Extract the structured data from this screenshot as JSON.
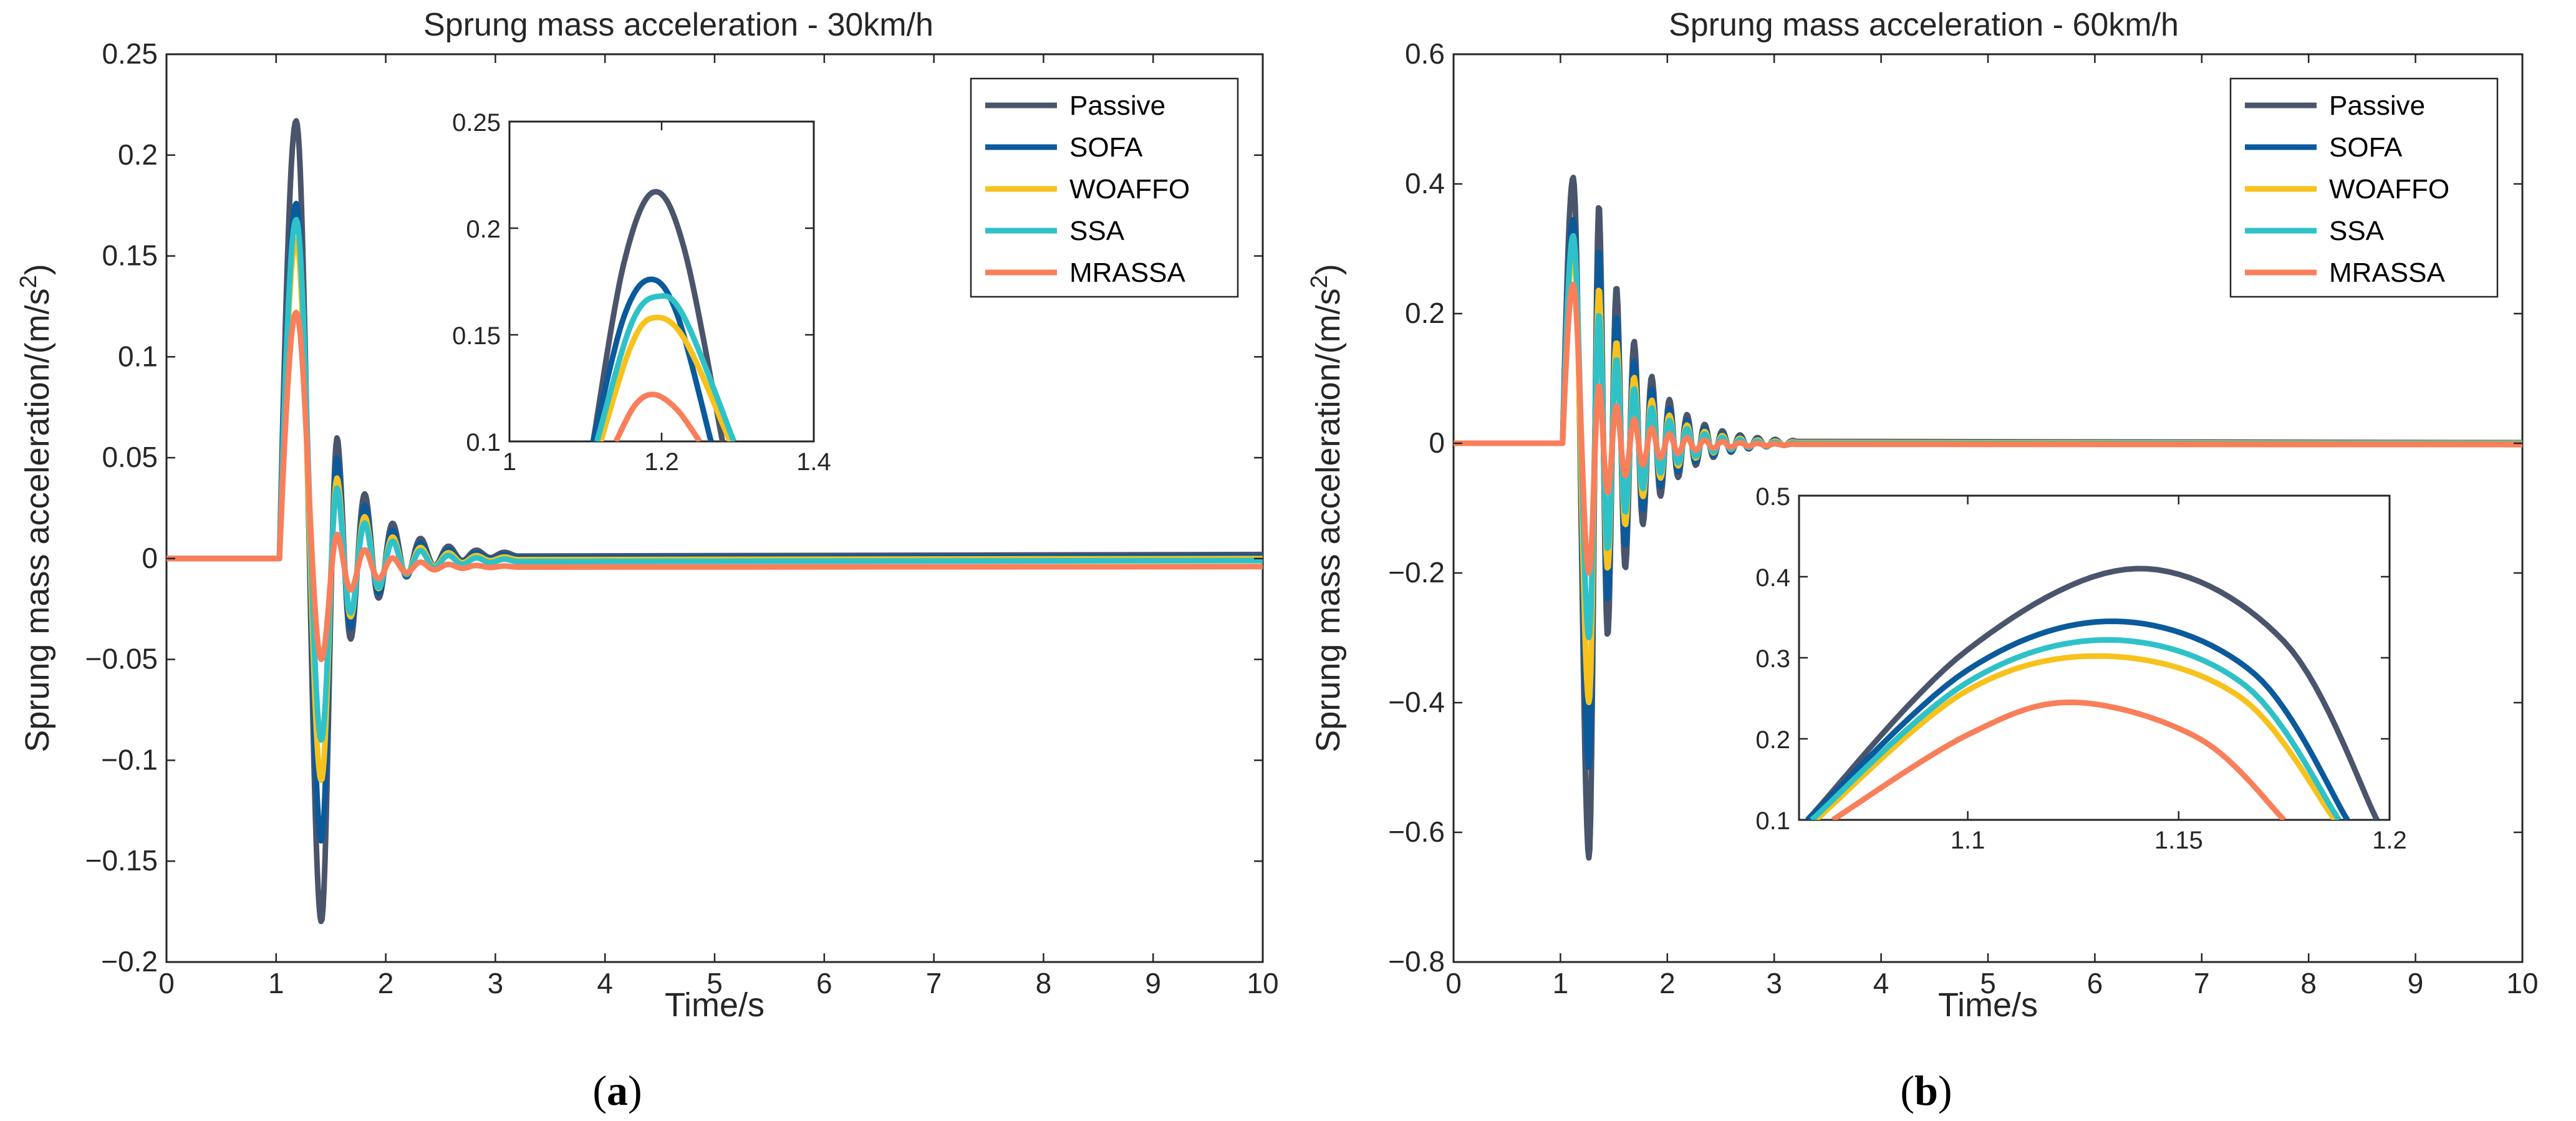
{
  "colors": {
    "Passive": "#4a556c",
    "SOFA": "#0a5a9c",
    "WOAFFO": "#f7c21c",
    "SSA": "#2ec2c8",
    "MRASSA": "#f97f5b"
  },
  "captions": {
    "a_open": "(",
    "a_letter": "a",
    "a_close": ")",
    "b_open": "(",
    "b_letter": "b",
    "b_close": ")"
  },
  "chart_data": [
    {
      "id": "a",
      "type": "line",
      "title": "Sprung mass acceleration - 30km/h",
      "xlabel": "Time/s",
      "ylabel": "Sprung mass acceleration/(m/s",
      "ylabel_sup": "2",
      "ylabel_close": ")",
      "xlim": [
        0,
        10
      ],
      "ylim": [
        -0.2,
        0.25
      ],
      "xticks": [
        0,
        1,
        2,
        3,
        4,
        5,
        6,
        7,
        8,
        9,
        10
      ],
      "xtick_labels": [
        "0",
        "1",
        "2",
        "3",
        "4",
        "5",
        "6",
        "7",
        "8",
        "9",
        "10"
      ],
      "yticks": [
        -0.2,
        -0.15,
        -0.1,
        -0.05,
        0,
        0.05,
        0.1,
        0.15,
        0.2,
        0.25
      ],
      "ytick_labels": [
        "−0.2",
        "−0.15",
        "−0.1",
        "−0.05",
        "0",
        "0.05",
        "0.1",
        "0.15",
        "0.2",
        "0.25"
      ],
      "legend": [
        "Passive",
        "SOFA",
        "WOAFFO",
        "SSA",
        "MRASSA"
      ],
      "legend_position": "top-right",
      "series": [
        {
          "name": "Passive",
          "peak": 0.217,
          "trough": -0.18,
          "peak2": 0.06,
          "trough2": -0.035,
          "tail": 0.002
        },
        {
          "name": "SOFA",
          "peak": 0.176,
          "trough": -0.14,
          "peak2": 0.05,
          "trough2": -0.03,
          "tail": 0.001
        },
        {
          "name": "WOAFFO",
          "peak": 0.158,
          "trough": -0.11,
          "peak2": 0.04,
          "trough2": -0.025,
          "tail": 0
        },
        {
          "name": "SSA",
          "peak": 0.168,
          "trough": -0.09,
          "peak2": 0.035,
          "trough2": -0.02,
          "tail": -0.001
        },
        {
          "name": "MRASSA",
          "peak": 0.122,
          "trough": -0.05,
          "peak2": 0.012,
          "trough2": -0.01,
          "tail": -0.004
        }
      ],
      "inset": {
        "xlim": [
          1,
          1.4
        ],
        "ylim": [
          0.1,
          0.25
        ],
        "xticks": [
          1,
          1.2,
          1.4
        ],
        "xtick_labels": [
          "1",
          "1.2",
          "1.4"
        ],
        "yticks": [
          0.1,
          0.15,
          0.2,
          0.25
        ],
        "ytick_labels": [
          "0.1",
          "0.15",
          "0.2",
          "0.25"
        ],
        "series": [
          {
            "name": "Passive",
            "x": [
              1.11,
              1.15,
              1.19,
              1.23,
              1.28
            ],
            "y": [
              0.1,
              0.183,
              0.217,
              0.19,
              0.1
            ]
          },
          {
            "name": "SOFA",
            "x": [
              1.11,
              1.15,
              1.185,
              1.22,
              1.265
            ],
            "y": [
              0.1,
              0.158,
              0.176,
              0.16,
              0.1
            ]
          },
          {
            "name": "WOAFFO",
            "x": [
              1.12,
              1.16,
              1.19,
              1.23,
              1.29
            ],
            "y": [
              0.1,
              0.145,
              0.158,
              0.148,
              0.1
            ]
          },
          {
            "name": "SSA",
            "x": [
              1.115,
              1.16,
              1.195,
              1.23,
              1.295
            ],
            "y": [
              0.1,
              0.155,
              0.168,
              0.158,
              0.1
            ]
          },
          {
            "name": "MRASSA",
            "x": [
              1.14,
              1.165,
              1.19,
              1.22,
              1.25
            ],
            "y": [
              0.1,
              0.117,
              0.122,
              0.115,
              0.1
            ]
          }
        ]
      }
    },
    {
      "id": "b",
      "type": "line",
      "title": "Sprung mass acceleration - 60km/h",
      "xlabel": "Time/s",
      "ylabel": "Sprung mass acceleration/(m/s",
      "ylabel_sup": "2",
      "ylabel_close": ")",
      "xlim": [
        0,
        10
      ],
      "ylim": [
        -0.8,
        0.6
      ],
      "xticks": [
        0,
        1,
        2,
        3,
        4,
        5,
        6,
        7,
        8,
        9,
        10
      ],
      "xtick_labels": [
        "0",
        "1",
        "2",
        "3",
        "4",
        "5",
        "6",
        "7",
        "8",
        "9",
        "10"
      ],
      "yticks": [
        -0.8,
        -0.6,
        -0.4,
        -0.2,
        0,
        0.2,
        0.4,
        0.6
      ],
      "ytick_labels": [
        "−0.8",
        "−0.6",
        "−0.4",
        "−0.2",
        "0",
        "0.2",
        "0.4",
        "0.6"
      ],
      "legend": [
        "Passive",
        "SOFA",
        "WOAFFO",
        "SSA",
        "MRASSA"
      ],
      "legend_position": "top-right",
      "series": [
        {
          "name": "Passive",
          "peak": 0.41,
          "trough": -0.64,
          "peak2": 0.37,
          "trough2": -0.22,
          "tail": 0.001
        },
        {
          "name": "SOFA",
          "peak": 0.345,
          "trough": -0.5,
          "peak2": 0.3,
          "trough2": -0.17,
          "tail": 0
        },
        {
          "name": "WOAFFO",
          "peak": 0.3,
          "trough": -0.4,
          "peak2": 0.24,
          "trough2": -0.13,
          "tail": 0
        },
        {
          "name": "SSA",
          "peak": 0.32,
          "trough": -0.3,
          "peak2": 0.2,
          "trough2": -0.1,
          "tail": -0.001
        },
        {
          "name": "MRASSA",
          "peak": 0.245,
          "trough": -0.2,
          "peak2": 0.09,
          "trough2": -0.05,
          "tail": -0.002
        }
      ],
      "inset": {
        "xlim": [
          1.06,
          1.2
        ],
        "ylim": [
          0.1,
          0.5
        ],
        "xticks": [
          1.1,
          1.15,
          1.2
        ],
        "xtick_labels": [
          "1.1",
          "1.15",
          "1.2"
        ],
        "yticks": [
          0.1,
          0.2,
          0.3,
          0.4,
          0.5
        ],
        "ytick_labels": [
          "0.1",
          "0.2",
          "0.3",
          "0.4",
          "0.5"
        ],
        "series": [
          {
            "name": "Passive",
            "x": [
              1.062,
              1.1,
              1.14,
              1.175,
              1.197
            ],
            "y": [
              0.1,
              0.31,
              0.41,
              0.32,
              0.1
            ]
          },
          {
            "name": "SOFA",
            "x": [
              1.062,
              1.1,
              1.135,
              1.168,
              1.19
            ],
            "y": [
              0.1,
              0.285,
              0.345,
              0.28,
              0.1
            ]
          },
          {
            "name": "WOAFFO",
            "x": [
              1.064,
              1.1,
              1.133,
              1.165,
              1.187
            ],
            "y": [
              0.1,
              0.26,
              0.302,
              0.25,
              0.1
            ]
          },
          {
            "name": "SSA",
            "x": [
              1.063,
              1.1,
              1.134,
              1.166,
              1.188
            ],
            "y": [
              0.1,
              0.27,
              0.322,
              0.265,
              0.1
            ]
          },
          {
            "name": "MRASSA",
            "x": [
              1.068,
              1.1,
              1.125,
              1.155,
              1.175
            ],
            "y": [
              0.1,
              0.205,
              0.245,
              0.2,
              0.1
            ]
          }
        ]
      }
    }
  ]
}
